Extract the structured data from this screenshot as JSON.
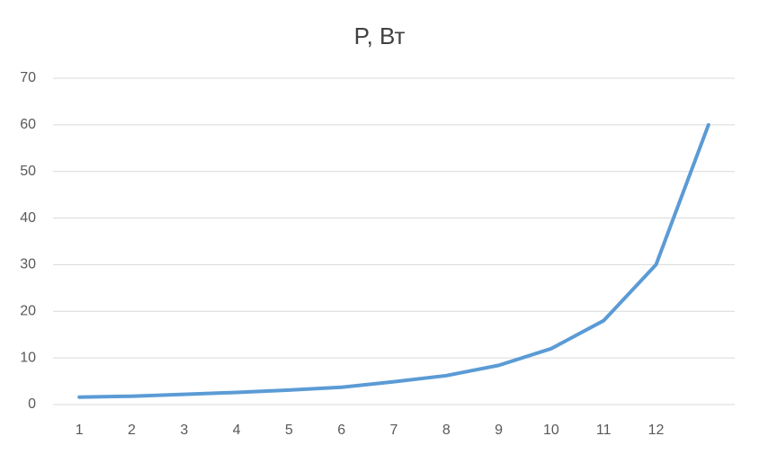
{
  "chart_data": {
    "type": "line",
    "title": "P, Вт",
    "categories": [
      "1",
      "2",
      "3",
      "4",
      "5",
      "6",
      "7",
      "8",
      "9",
      "10",
      "11",
      "12",
      null
    ],
    "series": [
      {
        "color": "#5b9bd5",
        "values": [
          1.6,
          1.8,
          2.2,
          2.6,
          3.1,
          3.7,
          4.9,
          6.2,
          8.4,
          12,
          18,
          30,
          60
        ]
      }
    ],
    "ylim": [
      0,
      70
    ],
    "yticks": [
      0,
      10,
      20,
      30,
      40,
      50,
      60,
      70
    ],
    "grid": true
  }
}
